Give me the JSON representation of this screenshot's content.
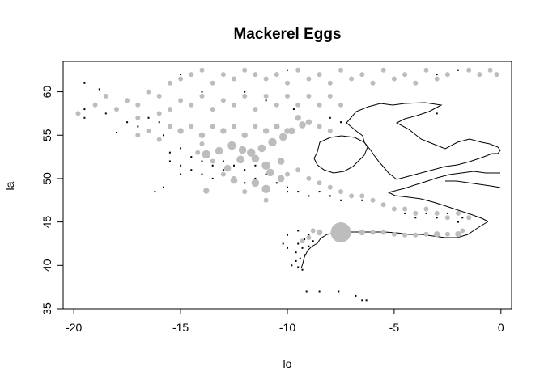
{
  "chart_data": {
    "type": "scatter",
    "title": "Mackerel Eggs",
    "xlabel": "lo",
    "ylabel": "la",
    "xlim": [
      -20.5,
      0.5
    ],
    "ylim": [
      35,
      63.5
    ],
    "x_ticks": [
      -20,
      -15,
      -10,
      -5,
      0
    ],
    "x_tick_labels": [
      "-20",
      "-15",
      "-10",
      "-5",
      "0"
    ],
    "y_ticks": [
      35,
      40,
      45,
      50,
      55,
      60
    ],
    "y_tick_labels": [
      "35",
      "40",
      "45",
      "50",
      "55",
      "60"
    ],
    "grid": false,
    "legend": "none",
    "colors": {
      "zero_count": "#000000",
      "positive_count": "#bdbdbd",
      "coast": "#000000"
    },
    "marker_size_note": "point size proportional to egg count",
    "zero_points": [
      [
        -19.5,
        61
      ],
      [
        -18.8,
        60.3
      ],
      [
        -19.5,
        58
      ],
      [
        -19.5,
        57
      ],
      [
        -18.5,
        57.5
      ],
      [
        -18,
        55.3
      ],
      [
        -17.5,
        56.5
      ],
      [
        -17,
        56
      ],
      [
        -16.5,
        57
      ],
      [
        -16,
        56.5
      ],
      [
        -15.8,
        55
      ],
      [
        -15.5,
        53
      ],
      [
        -15.5,
        52
      ],
      [
        -15,
        53.5
      ],
      [
        -15,
        51.5
      ],
      [
        -15,
        50.5
      ],
      [
        -14.5,
        52.5
      ],
      [
        -14.5,
        51
      ],
      [
        -14,
        52
      ],
      [
        -14,
        50.5
      ],
      [
        -13.5,
        51.5
      ],
      [
        -13.5,
        50
      ],
      [
        -13,
        52
      ],
      [
        -13,
        51
      ],
      [
        -12.5,
        51.5
      ],
      [
        -12.5,
        50
      ],
      [
        -12,
        51
      ],
      [
        -12,
        49.5
      ],
      [
        -11.5,
        51.5
      ],
      [
        -11.5,
        50
      ],
      [
        -11,
        50.5
      ],
      [
        -10.5,
        49.5
      ],
      [
        -10,
        49
      ],
      [
        -10,
        48.5
      ],
      [
        -9.5,
        48.5
      ],
      [
        -9,
        48
      ],
      [
        -8.5,
        48.5
      ],
      [
        -8,
        48
      ],
      [
        -7.5,
        47.5
      ],
      [
        -6.5,
        47.5
      ],
      [
        -5,
        46.5
      ],
      [
        -4.5,
        46
      ],
      [
        -4,
        45.5
      ],
      [
        -3.5,
        46
      ],
      [
        -3,
        45.5
      ],
      [
        -2.5,
        46
      ],
      [
        -2,
        45
      ],
      [
        -1.8,
        45.5
      ],
      [
        -15.8,
        49
      ],
      [
        -16.2,
        48.5
      ],
      [
        -12,
        60
      ],
      [
        -11,
        59
      ],
      [
        -14,
        60
      ],
      [
        -8,
        57
      ],
      [
        -7.5,
        56.5
      ],
      [
        -9.7,
        58
      ],
      [
        -3,
        57.5
      ],
      [
        -2,
        62.5
      ],
      [
        -3,
        62
      ],
      [
        -15,
        62
      ],
      [
        -10,
        62.5
      ],
      [
        -9.5,
        44
      ],
      [
        -10,
        43.5
      ],
      [
        -9.2,
        43
      ],
      [
        -9.5,
        42.5
      ],
      [
        -9.3,
        42
      ],
      [
        -9.6,
        41.5
      ],
      [
        -9.2,
        41.2
      ],
      [
        -9.4,
        40.8
      ],
      [
        -9.6,
        40.5
      ],
      [
        -9.8,
        40
      ],
      [
        -9.5,
        39.8
      ],
      [
        -9.3,
        39.5
      ],
      [
        -10,
        42
      ],
      [
        -10.2,
        42.5
      ],
      [
        -9,
        42.2
      ],
      [
        -8.8,
        42.8
      ],
      [
        -9,
        43.5
      ],
      [
        -9.1,
        37
      ],
      [
        -8.5,
        37
      ],
      [
        -7.6,
        37
      ],
      [
        -6.8,
        36.5
      ],
      [
        -6.5,
        36
      ],
      [
        -6.3,
        36
      ]
    ],
    "positive_points": [
      [
        -19.8,
        57.5,
        1
      ],
      [
        -19,
        58.5,
        1
      ],
      [
        -18,
        58,
        1
      ],
      [
        -17.5,
        59,
        1
      ],
      [
        -17,
        58.5,
        1
      ],
      [
        -16.5,
        60,
        1
      ],
      [
        -16,
        59.5,
        1
      ],
      [
        -15.5,
        61,
        1
      ],
      [
        -15,
        61.5,
        1
      ],
      [
        -14.5,
        62,
        1
      ],
      [
        -14,
        62.5,
        1
      ],
      [
        -13.5,
        61,
        1
      ],
      [
        -13,
        62,
        1
      ],
      [
        -12.5,
        61.5,
        1
      ],
      [
        -12,
        62.5,
        1
      ],
      [
        -11.5,
        62,
        1
      ],
      [
        -11,
        61.5,
        1
      ],
      [
        -10.5,
        62,
        1
      ],
      [
        -10,
        61,
        1
      ],
      [
        -9.5,
        62.5,
        1
      ],
      [
        -9,
        61.5,
        1
      ],
      [
        -8.5,
        62,
        1
      ],
      [
        -8,
        61,
        1
      ],
      [
        -7.5,
        62.5,
        1
      ],
      [
        -7,
        61.5,
        1
      ],
      [
        -6.5,
        62,
        1
      ],
      [
        -6,
        61,
        1
      ],
      [
        -5.5,
        62.5,
        1
      ],
      [
        -5,
        61.5,
        1
      ],
      [
        -4.5,
        62,
        1
      ],
      [
        -4,
        61,
        1
      ],
      [
        -3.5,
        62.5,
        1
      ],
      [
        -3,
        61.5,
        1
      ],
      [
        -2.5,
        62,
        1
      ],
      [
        -1.5,
        62.5,
        1
      ],
      [
        -1,
        62,
        1
      ],
      [
        -0.5,
        62.5,
        1
      ],
      [
        -0.2,
        62,
        1
      ],
      [
        -18.5,
        59.5,
        1
      ],
      [
        -17,
        57,
        1
      ],
      [
        -16,
        57.5,
        1
      ],
      [
        -15.5,
        58,
        1
      ],
      [
        -15,
        59,
        1
      ],
      [
        -14.5,
        58.5,
        1
      ],
      [
        -14,
        59.5,
        1
      ],
      [
        -13.5,
        58,
        1
      ],
      [
        -13,
        59,
        1
      ],
      [
        -12.5,
        58.5,
        1
      ],
      [
        -12,
        59.5,
        1
      ],
      [
        -11.5,
        58,
        1
      ],
      [
        -11,
        59.5,
        1
      ],
      [
        -10.5,
        58.5,
        1
      ],
      [
        -10,
        59.5,
        1
      ],
      [
        -9.5,
        58.5,
        1
      ],
      [
        -9,
        59.5,
        1
      ],
      [
        -8.5,
        58.5,
        1
      ],
      [
        -8,
        59.5,
        1
      ],
      [
        -7.5,
        58.5,
        1
      ],
      [
        -17,
        55,
        1
      ],
      [
        -16.5,
        55.5,
        1
      ],
      [
        -16,
        54.5,
        1
      ],
      [
        -15.5,
        56,
        1
      ],
      [
        -15,
        55.5,
        2
      ],
      [
        -14.5,
        56,
        1
      ],
      [
        -14,
        55,
        2
      ],
      [
        -13.5,
        56,
        1
      ],
      [
        -13,
        55.5,
        2
      ],
      [
        -12.5,
        56,
        1
      ],
      [
        -12,
        55,
        2
      ],
      [
        -11.5,
        56,
        1
      ],
      [
        -11,
        55.5,
        2
      ],
      [
        -10.5,
        56,
        2
      ],
      [
        -10,
        55.5,
        2
      ],
      [
        -9.5,
        57,
        2
      ],
      [
        -9,
        56.5,
        2
      ],
      [
        -8.5,
        56,
        1
      ],
      [
        -8,
        55.5,
        1
      ],
      [
        -13.8,
        52.8,
        5
      ],
      [
        -13.2,
        53.2,
        4
      ],
      [
        -12.6,
        53.8,
        5
      ],
      [
        -12.1,
        53.3,
        4
      ],
      [
        -11.7,
        53,
        5
      ],
      [
        -11.2,
        53.5,
        4
      ],
      [
        -10.7,
        54.2,
        5
      ],
      [
        -10.2,
        54.8,
        4
      ],
      [
        -9.8,
        55.5,
        3
      ],
      [
        -9.3,
        56.2,
        3
      ],
      [
        -11.5,
        52.3,
        4
      ],
      [
        -11,
        51.5,
        5
      ],
      [
        -10.8,
        50.7,
        4
      ],
      [
        -11.5,
        49.5,
        4
      ],
      [
        -11,
        48.8,
        5
      ],
      [
        -12.5,
        49.8,
        3
      ],
      [
        -13.8,
        48.6,
        2
      ],
      [
        -12.2,
        52.2,
        4
      ],
      [
        -10.3,
        50,
        3
      ],
      [
        -10.3,
        52,
        3
      ],
      [
        -12.8,
        51.2,
        3
      ],
      [
        -14,
        54,
        1
      ],
      [
        -14.2,
        53,
        1
      ],
      [
        -13.5,
        52,
        1
      ],
      [
        -13,
        50.5,
        1
      ],
      [
        -12.5,
        50,
        1
      ],
      [
        -12,
        48.5,
        1
      ],
      [
        -11,
        47.5,
        1
      ],
      [
        -10,
        50.5,
        1
      ],
      [
        -9.5,
        51,
        1
      ],
      [
        -9,
        50,
        1
      ],
      [
        -8.5,
        49.5,
        1
      ],
      [
        -8,
        49,
        1
      ],
      [
        -7.5,
        48.5,
        1
      ],
      [
        -7,
        48,
        1
      ],
      [
        -6.5,
        48,
        1
      ],
      [
        -6,
        47.5,
        1
      ],
      [
        -5.5,
        47,
        1
      ],
      [
        -5,
        46.5,
        1
      ],
      [
        -4.5,
        46.5,
        1
      ],
      [
        -4,
        46,
        1
      ],
      [
        -3.5,
        46.5,
        1
      ],
      [
        -3,
        46,
        1
      ],
      [
        -2.5,
        45.5,
        1
      ],
      [
        -2,
        46,
        1
      ],
      [
        -1.5,
        45.5,
        1
      ],
      [
        -7.5,
        43.8,
        11
      ],
      [
        -8.5,
        43.8,
        2
      ],
      [
        -6.5,
        43.8,
        2
      ],
      [
        -6,
        43.8,
        1
      ],
      [
        -5.5,
        43.8,
        1
      ],
      [
        -5,
        43.6,
        1
      ],
      [
        -4.5,
        43.5,
        1
      ],
      [
        -4,
        43.5,
        1
      ],
      [
        -3.5,
        43.6,
        1
      ],
      [
        -3,
        43.6,
        2
      ],
      [
        -2.5,
        43.6,
        1
      ],
      [
        -2,
        43.6,
        2
      ],
      [
        -1.8,
        44,
        1
      ],
      [
        -9,
        43.2,
        1
      ],
      [
        -9.3,
        42.8,
        1
      ],
      [
        -8.8,
        44,
        1
      ]
    ]
  }
}
